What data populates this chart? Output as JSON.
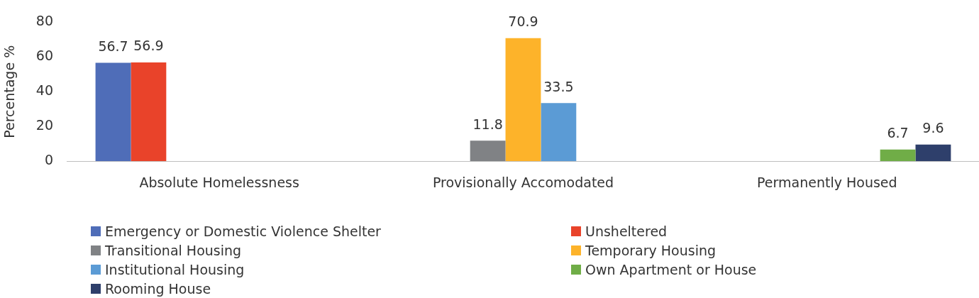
{
  "chart_data": {
    "type": "bar",
    "ylabel": "Percentage %",
    "categories": [
      "Absolute Homelessness",
      "Provisionally Accomodated",
      "Permanently Housed"
    ],
    "series": [
      {
        "name": "Emergency or Domestic Violence Shelter",
        "color": "#4f6db8",
        "values": [
          56.7,
          null,
          null
        ]
      },
      {
        "name": "Unsheltered",
        "color": "#e9432a",
        "values": [
          56.9,
          null,
          null
        ]
      },
      {
        "name": "Transitional Housing",
        "color": "#808285",
        "values": [
          null,
          11.8,
          null
        ]
      },
      {
        "name": "Temporary Housing",
        "color": "#fdb32a",
        "values": [
          null,
          70.9,
          null
        ]
      },
      {
        "name": "Institutional Housing",
        "color": "#5b9bd5",
        "values": [
          null,
          33.5,
          null
        ]
      },
      {
        "name": "Own Apartment or House",
        "color": "#70ad47",
        "values": [
          null,
          null,
          6.7
        ]
      },
      {
        "name": "Rooming House",
        "color": "#2e3f6b",
        "values": [
          null,
          null,
          9.6
        ]
      }
    ],
    "ylim": [
      0,
      80
    ],
    "yticks": [
      0,
      20,
      40,
      60,
      80
    ],
    "grid": false,
    "legend": "bottom",
    "data_labels": true
  }
}
